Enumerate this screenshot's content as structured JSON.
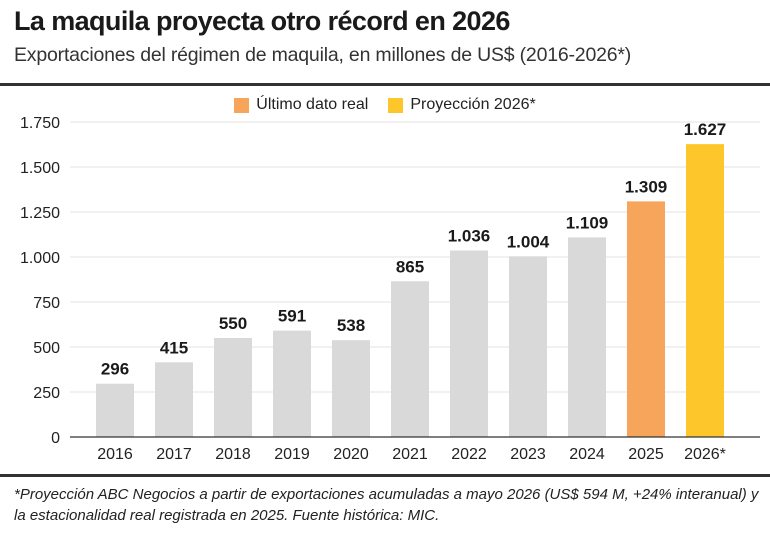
{
  "header": {
    "title": "La maquila proyecta otro récord en 2026",
    "subtitle": "Exportaciones del régimen de maquila, en millones de US$ (2016-2026*)"
  },
  "footnote": "*Proyección ABC Negocios a partir de exportaciones acumuladas a mayo 2026 (US$ 594 M, +24% interanual) y la estacionalidad real registrada en 2025.  Fuente histórica: MIC.",
  "colors": {
    "historical": "#d9d9d9",
    "last_real": "#f7a55a",
    "projection": "#fdc72b",
    "grid": "#e3e3e3",
    "axis": "#333333"
  },
  "chart_data": {
    "type": "bar",
    "title": "La maquila proyecta otro récord en 2026",
    "subtitle": "Exportaciones del régimen de maquila, en millones de US$ (2016-2026*)",
    "categories": [
      "2016",
      "2017",
      "2018",
      "2019",
      "2020",
      "2021",
      "2022",
      "2023",
      "2024",
      "2025",
      "2026*"
    ],
    "values": [
      296,
      415,
      550,
      591,
      538,
      865,
      1036,
      1004,
      1109,
      1309,
      1627
    ],
    "value_labels": [
      "296",
      "415",
      "550",
      "591",
      "538",
      "865",
      "1.036",
      "1.004",
      "1.109",
      "1.309",
      "1.627"
    ],
    "bar_kinds": [
      "historical",
      "historical",
      "historical",
      "historical",
      "historical",
      "historical",
      "historical",
      "historical",
      "historical",
      "last_real",
      "projection"
    ],
    "ylim": [
      0,
      1750
    ],
    "yticks": [
      0,
      250,
      500,
      750,
      1000,
      1250,
      1500,
      1750
    ],
    "ytick_labels": [
      "0",
      "250",
      "500",
      "750",
      "1.000",
      "1.250",
      "1.500",
      "1.750"
    ],
    "legend": [
      {
        "label": "Último dato real",
        "kind": "last_real"
      },
      {
        "label": "Proyección 2026*",
        "kind": "projection"
      }
    ],
    "legend_position": "top-center",
    "grid": true
  }
}
